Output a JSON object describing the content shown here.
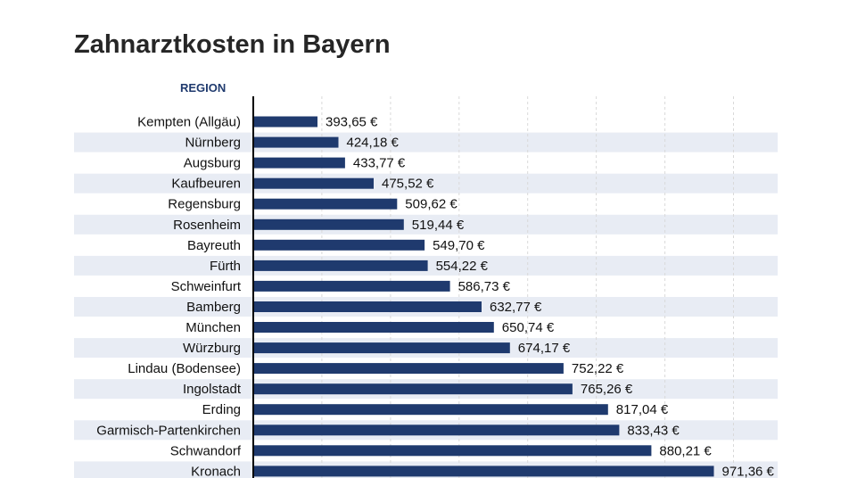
{
  "title": "Zahnarztkosten in Bayern",
  "column_header": "REGION",
  "colors": {
    "bar": "#1f3a6e",
    "stripe": "#e8ecf4",
    "grid": "#d9d9d9",
    "axis": "#000000",
    "title": "#262626",
    "header": "#1f3a6e"
  },
  "chart_data": {
    "type": "bar",
    "orientation": "horizontal",
    "title": "Zahnarztkosten in Bayern",
    "ylabel": "REGION",
    "unit": "€",
    "xlim": [
      300,
      1000
    ],
    "grid": true,
    "categories": [
      "Kempten (Allgäu)",
      "Nürnberg",
      "Augsburg",
      "Kaufbeuren",
      "Regensburg",
      "Rosenheim",
      "Bayreuth",
      "Fürth",
      "Schweinfurt",
      "Bamberg",
      "München",
      "Würzburg",
      "Lindau (Bodensee)",
      "Ingolstadt",
      "Erding",
      "Garmisch-Partenkirchen",
      "Schwandorf",
      "Kronach"
    ],
    "values": [
      393.65,
      424.18,
      433.77,
      475.52,
      509.62,
      519.44,
      549.7,
      554.22,
      586.73,
      632.77,
      650.74,
      674.17,
      752.22,
      765.26,
      817.04,
      833.43,
      880.21,
      971.36
    ],
    "value_labels": [
      "393,65 €",
      "424,18 €",
      "433,77 €",
      "475,52 €",
      "509,62 €",
      "519,44 €",
      "549,70 €",
      "554,22 €",
      "586,73 €",
      "632,77 €",
      "650,74 €",
      "674,17 €",
      "752,22 €",
      "765,26 €",
      "817,04 €",
      "833,43 €",
      "880,21 €",
      "971,36 €"
    ]
  }
}
